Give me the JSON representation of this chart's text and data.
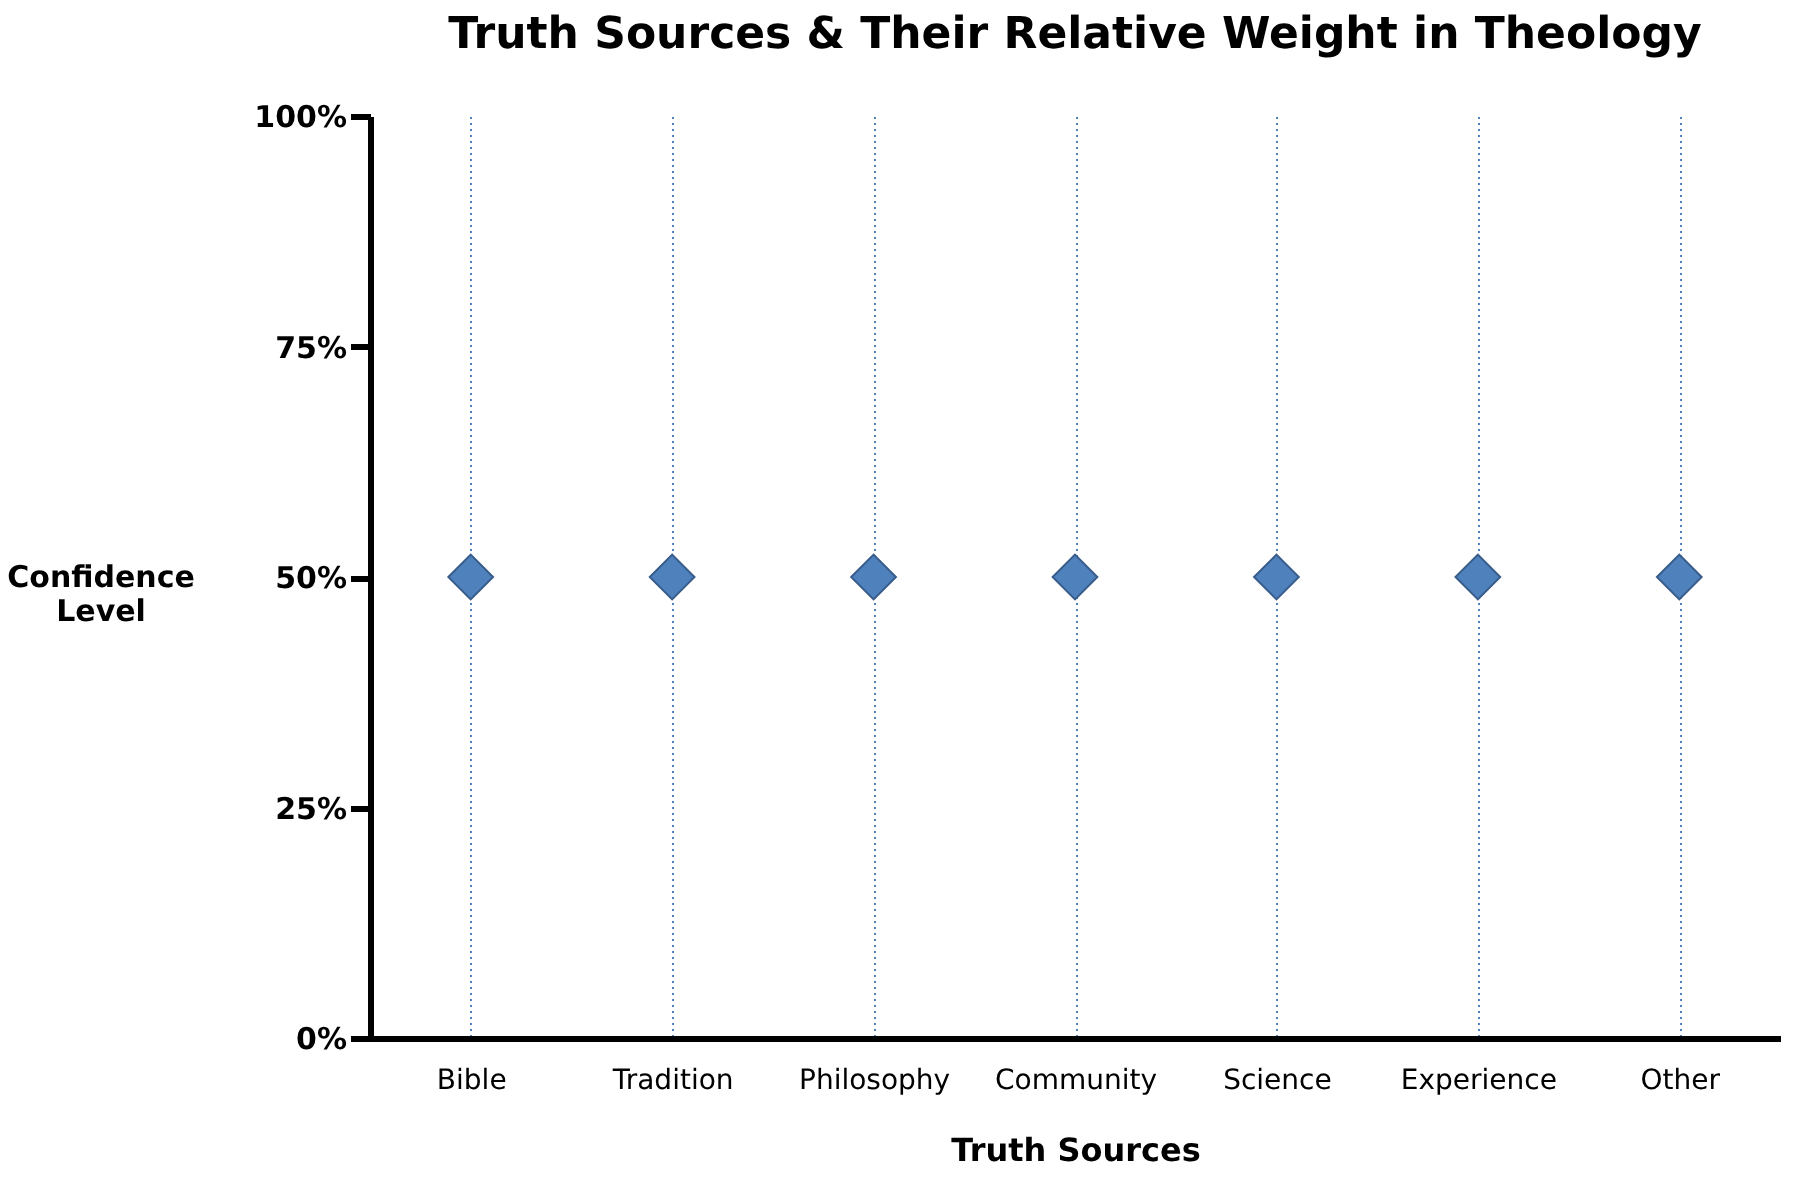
{
  "chart_data": {
    "type": "scatter",
    "title": "Truth Sources & Their Relative Weight in Theology",
    "xlabel": "Truth Sources",
    "ylabel": "Confidence Level",
    "categories": [
      "Bible",
      "Tradition",
      "Philosophy",
      "Community",
      "Science",
      "Experience",
      "Other"
    ],
    "values": [
      50,
      50,
      50,
      50,
      50,
      50,
      50
    ],
    "color": "#4f81bd",
    "marker": "diamond",
    "grid": "x",
    "ylim": [
      0,
      100
    ],
    "yticks": [
      {
        "value": 0,
        "label": "0%"
      },
      {
        "value": 25,
        "label": "25%"
      },
      {
        "value": 50,
        "label": "50%"
      },
      {
        "value": 75,
        "label": "75%"
      },
      {
        "value": 100,
        "label": "100%"
      }
    ]
  }
}
